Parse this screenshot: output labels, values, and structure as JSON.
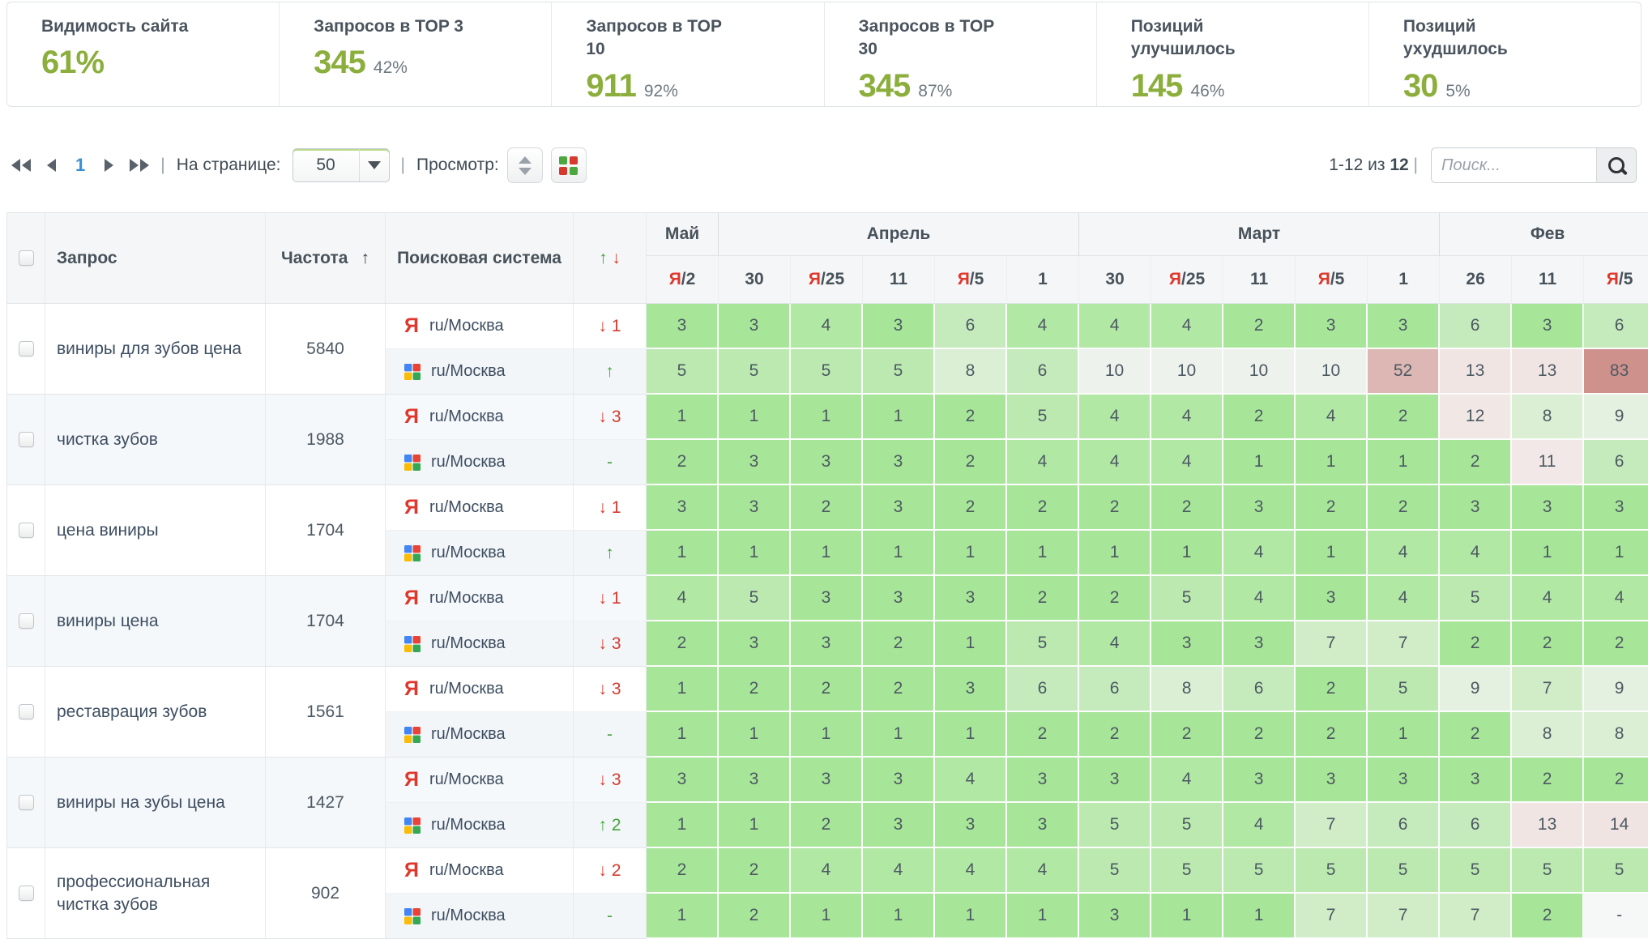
{
  "stats": [
    {
      "label": "Видимость сайта",
      "value": "61%",
      "percent": ""
    },
    {
      "label": "Запросов в TOP 3",
      "value": "345",
      "percent": "42%"
    },
    {
      "label": "Запросов в TOP 10",
      "value": "911",
      "percent": "92%"
    },
    {
      "label": "Запросов в TOP 30",
      "value": "345",
      "percent": "87%"
    },
    {
      "label": "Позиций улучшилось",
      "value": "145",
      "percent": "46%"
    },
    {
      "label": "Позиций ухудшилось",
      "value": "30",
      "percent": "5%"
    }
  ],
  "toolbar": {
    "page": "1",
    "per_page_label": "На странице:",
    "per_page_value": "50",
    "view_label": "Просмотр:",
    "range_label": "1-12 из",
    "range_total": "12",
    "range_sep": "|",
    "search_placeholder": "Поиск..."
  },
  "table": {
    "headers": {
      "query": "Запрос",
      "frequency": "Частота",
      "engine": "Поисковая система"
    },
    "months": [
      {
        "label": "Май",
        "span": 1
      },
      {
        "label": "Апрель",
        "span": 5
      },
      {
        "label": "Март",
        "span": 5
      },
      {
        "label": "Фев",
        "span": 3
      }
    ],
    "dates": [
      {
        "ya": true,
        "label": "2"
      },
      {
        "ya": false,
        "label": "30"
      },
      {
        "ya": true,
        "label": "25"
      },
      {
        "ya": false,
        "label": "11"
      },
      {
        "ya": true,
        "label": "5"
      },
      {
        "ya": false,
        "label": "1"
      },
      {
        "ya": false,
        "label": "30"
      },
      {
        "ya": true,
        "label": "25"
      },
      {
        "ya": false,
        "label": "11"
      },
      {
        "ya": true,
        "label": "5"
      },
      {
        "ya": false,
        "label": "1"
      },
      {
        "ya": false,
        "label": "26"
      },
      {
        "ya": false,
        "label": "11"
      },
      {
        "ya": true,
        "label": "5"
      }
    ],
    "rows": [
      {
        "query": "виниры для зубов цена",
        "frequency": "5840",
        "engines": [
          {
            "engine": "yandex",
            "region": "ru/Москва",
            "change": {
              "dir": "down",
              "amount": "1"
            },
            "positions": [
              3,
              3,
              4,
              3,
              6,
              4,
              4,
              4,
              2,
              3,
              3,
              6,
              3,
              6
            ]
          },
          {
            "engine": "google",
            "region": "ru/Москва",
            "change": {
              "dir": "up",
              "amount": ""
            },
            "positions": [
              5,
              5,
              5,
              5,
              8,
              6,
              10,
              10,
              10,
              10,
              52,
              13,
              13,
              83
            ]
          }
        ]
      },
      {
        "query": "чистка зубов",
        "frequency": "1988",
        "engines": [
          {
            "engine": "yandex",
            "region": "ru/Москва",
            "change": {
              "dir": "down",
              "amount": "3"
            },
            "positions": [
              1,
              1,
              1,
              1,
              2,
              5,
              4,
              4,
              2,
              4,
              2,
              12,
              8,
              9
            ]
          },
          {
            "engine": "google",
            "region": "ru/Москва",
            "change": {
              "dir": "none",
              "amount": ""
            },
            "positions": [
              2,
              3,
              3,
              3,
              2,
              4,
              4,
              4,
              1,
              1,
              1,
              2,
              11,
              6
            ]
          }
        ]
      },
      {
        "query": "цена виниры",
        "frequency": "1704",
        "engines": [
          {
            "engine": "yandex",
            "region": "ru/Москва",
            "change": {
              "dir": "down",
              "amount": "1"
            },
            "positions": [
              3,
              3,
              2,
              3,
              2,
              2,
              2,
              2,
              3,
              2,
              2,
              3,
              3,
              3
            ]
          },
          {
            "engine": "google",
            "region": "ru/Москва",
            "change": {
              "dir": "up",
              "amount": ""
            },
            "positions": [
              1,
              1,
              1,
              1,
              1,
              1,
              1,
              1,
              4,
              1,
              4,
              4,
              1,
              1
            ]
          }
        ]
      },
      {
        "query": "виниры цена",
        "frequency": "1704",
        "engines": [
          {
            "engine": "yandex",
            "region": "ru/Москва",
            "change": {
              "dir": "down",
              "amount": "1"
            },
            "positions": [
              4,
              5,
              3,
              3,
              3,
              2,
              2,
              5,
              4,
              3,
              4,
              5,
              4,
              4
            ]
          },
          {
            "engine": "google",
            "region": "ru/Москва",
            "change": {
              "dir": "down",
              "amount": "3"
            },
            "positions": [
              2,
              3,
              3,
              2,
              1,
              5,
              4,
              3,
              3,
              7,
              7,
              2,
              2,
              2
            ]
          }
        ]
      },
      {
        "query": "реставрация зубов",
        "frequency": "1561",
        "engines": [
          {
            "engine": "yandex",
            "region": "ru/Москва",
            "change": {
              "dir": "down",
              "amount": "3"
            },
            "positions": [
              1,
              2,
              2,
              2,
              3,
              6,
              6,
              8,
              6,
              2,
              5,
              9,
              7,
              9
            ]
          },
          {
            "engine": "google",
            "region": "ru/Москва",
            "change": {
              "dir": "none",
              "amount": ""
            },
            "positions": [
              1,
              1,
              1,
              1,
              1,
              2,
              2,
              2,
              2,
              2,
              1,
              2,
              8,
              8
            ]
          }
        ]
      },
      {
        "query": "виниры на зубы цена",
        "frequency": "1427",
        "engines": [
          {
            "engine": "yandex",
            "region": "ru/Москва",
            "change": {
              "dir": "down",
              "amount": "3"
            },
            "positions": [
              3,
              3,
              3,
              3,
              4,
              3,
              3,
              4,
              3,
              3,
              3,
              3,
              2,
              2
            ]
          },
          {
            "engine": "google",
            "region": "ru/Москва",
            "change": {
              "dir": "up",
              "amount": "2"
            },
            "positions": [
              1,
              1,
              2,
              3,
              3,
              3,
              5,
              5,
              4,
              7,
              6,
              6,
              13,
              14
            ]
          }
        ]
      },
      {
        "query": "профессиональная чистка зубов",
        "frequency": "902",
        "engines": [
          {
            "engine": "yandex",
            "region": "ru/Москва",
            "change": {
              "dir": "down",
              "amount": "2"
            },
            "positions": [
              2,
              2,
              4,
              4,
              4,
              4,
              5,
              5,
              5,
              5,
              5,
              5,
              5,
              5
            ]
          },
          {
            "engine": "google",
            "region": "ru/Москва",
            "change": {
              "dir": "none",
              "amount": ""
            },
            "positions": [
              1,
              2,
              1,
              1,
              1,
              1,
              3,
              1,
              1,
              7,
              7,
              7,
              2,
              "-"
            ]
          }
        ]
      }
    ]
  },
  "colors": {
    "accent_green": "#8bae3c",
    "positive": "#44a339",
    "negative": "#d6392e",
    "yandex_red": "#e0372c",
    "page_active": "#3a8fd1",
    "pos_top": "#a7e698",
    "pos_mid_end": "#eef2ec",
    "pos_bad_start": "#f2e9e8",
    "pos_bad_end": "#c67d76"
  }
}
